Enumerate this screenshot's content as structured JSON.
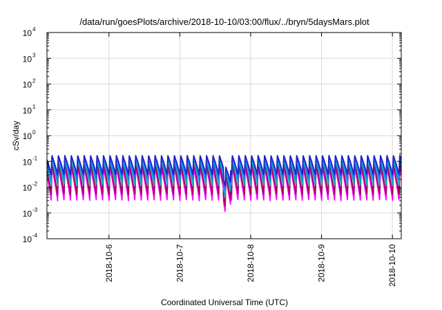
{
  "chart_data": {
    "type": "line",
    "title": "/data/run/goesPlots/archive/2018-10-10/03:00/flux/../bryn/5daysMars.plot",
    "xlabel": "Coordinated Universal Time (UTC)",
    "ylabel": "cSv/day",
    "yscale": "log",
    "ylim": [
      0.0001,
      10000
    ],
    "yticks": [
      {
        "base": "10",
        "exp": "-4",
        "value": 0.0001
      },
      {
        "base": "10",
        "exp": "-3",
        "value": 0.001
      },
      {
        "base": "10",
        "exp": "-2",
        "value": 0.01
      },
      {
        "base": "10",
        "exp": "-1",
        "value": 0.1
      },
      {
        "base": "10",
        "exp": "0",
        "value": 1
      },
      {
        "base": "10",
        "exp": "1",
        "value": 10
      },
      {
        "base": "10",
        "exp": "2",
        "value": 100
      },
      {
        "base": "10",
        "exp": "3",
        "value": 1000
      },
      {
        "base": "10",
        "exp": "4",
        "value": 10000
      }
    ],
    "xlim": [
      "2018-10-05T03:00",
      "2018-10-10T03:00"
    ],
    "xticks": [
      "2018-10-6",
      "2018-10-7",
      "2018-10-8",
      "2018-10-9",
      "2018-10-10"
    ],
    "grid": true,
    "legend": "none",
    "pattern": {
      "cycles_per_day": 11,
      "dip_near": "2018-10-7 16:00"
    },
    "series": [
      {
        "color": "#ff00ff",
        "peak": 0.06,
        "trough": 0.003
      },
      {
        "color": "#a0005a",
        "peak": 0.08,
        "trough": 0.005
      },
      {
        "color": "#00b4b4",
        "peak": 0.11,
        "trough": 0.012
      },
      {
        "color": "#1e78ff",
        "peak": 0.14,
        "trough": 0.02
      },
      {
        "color": "#2020c8",
        "peak": 0.17,
        "trough": 0.03
      }
    ]
  }
}
